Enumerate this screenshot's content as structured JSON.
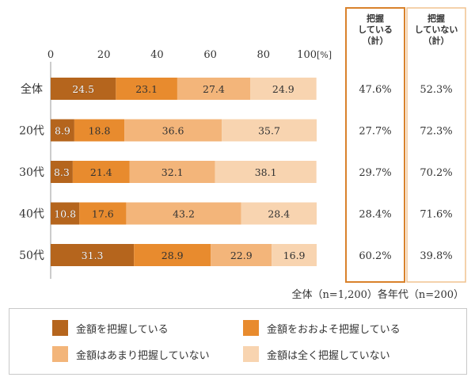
{
  "chart_data": {
    "type": "bar",
    "orientation": "horizontal",
    "stacked": true,
    "unit": "[%]",
    "xlim": [
      0,
      100
    ],
    "xticks": [
      "0",
      "20",
      "40",
      "60",
      "80",
      "100"
    ],
    "categories": [
      "全体",
      "20代",
      "30代",
      "40代",
      "50代"
    ],
    "series": [
      {
        "name": "金額を把握している",
        "color": "#b5651d",
        "values": [
          24.5,
          8.9,
          8.3,
          10.8,
          31.3
        ]
      },
      {
        "name": "金額をおおよそ把握している",
        "color": "#e88b2e",
        "values": [
          23.1,
          18.8,
          21.4,
          17.6,
          28.9
        ]
      },
      {
        "name": "金額はあまり把握していない",
        "color": "#f3b57a",
        "values": [
          27.4,
          36.6,
          32.1,
          43.2,
          22.9
        ]
      },
      {
        "name": "金額は全く把握していない",
        "color": "#f8d4b0",
        "values": [
          24.9,
          35.7,
          38.1,
          28.4,
          16.9
        ]
      }
    ],
    "summary_columns": [
      {
        "header": "把握\nしている\n（計）",
        "values": [
          "47.6%",
          "27.7%",
          "29.7%",
          "28.4%",
          "60.2%"
        ],
        "border_color": "#d9822b"
      },
      {
        "header": "把握\nしていない\n（計）",
        "values": [
          "52.3%",
          "72.3%",
          "70.2%",
          "71.6%",
          "39.8%"
        ],
        "border_color": "#f0c28f"
      }
    ],
    "legend_position": "bottom",
    "grid": false
  },
  "note": "全体（n=1,200）各年代（n=200）"
}
